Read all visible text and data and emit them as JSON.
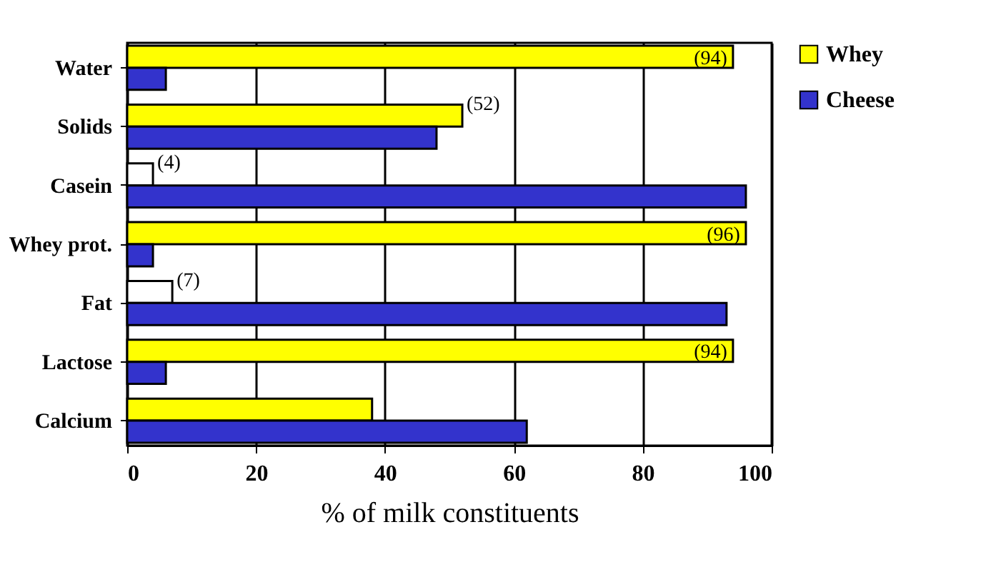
{
  "chart_data": {
    "type": "bar",
    "orientation": "horizontal",
    "xlabel": "% of milk constituents",
    "categories": [
      "Water",
      "Solids",
      "Casein",
      "Whey prot.",
      "Fat",
      "Lactose",
      "Calcium"
    ],
    "series": [
      {
        "name": "Whey",
        "color": "#ffff00",
        "colors": [
          "#ffff00",
          "#ffff00",
          "#ffffff",
          "#ffff00",
          "#ffffff",
          "#ffff00",
          "#ffff00"
        ],
        "values": [
          94,
          52,
          4,
          96,
          7,
          94,
          38
        ],
        "value_labels": [
          "(94)",
          "(52)",
          "(4)",
          "(96)",
          "(7)",
          "(94)",
          null
        ]
      },
      {
        "name": "Cheese",
        "color": "#3333cc",
        "values": [
          6,
          48,
          96,
          4,
          93,
          6,
          62
        ]
      }
    ],
    "xlim": [
      0,
      100
    ],
    "xticks": [
      0,
      20,
      40,
      60,
      80,
      100
    ],
    "grid": "x",
    "legend": "right"
  }
}
